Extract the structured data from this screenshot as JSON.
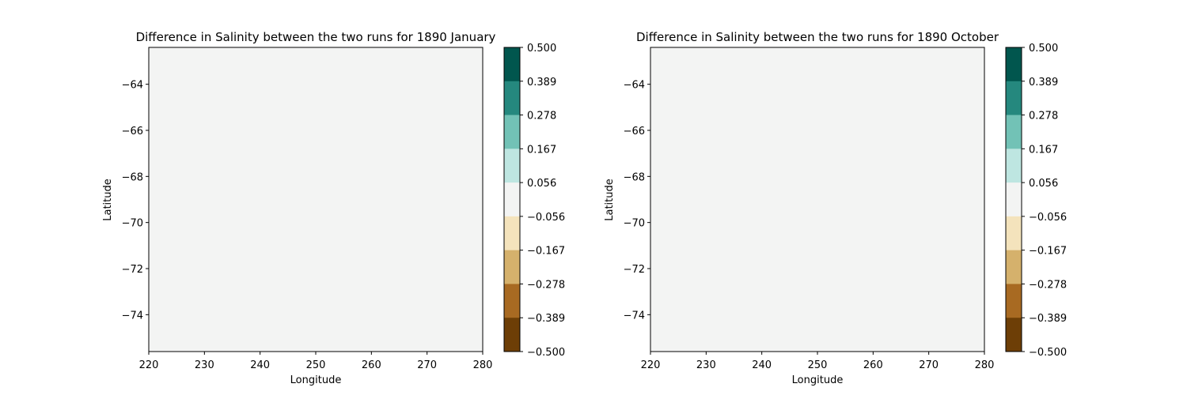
{
  "chart_data": [
    {
      "type": "heatmap",
      "title": "Difference in Salinity between the two runs for 1890 January",
      "xlabel": "Longitude",
      "ylabel": "Latitude",
      "xlim": [
        220,
        280
      ],
      "ylim": [
        -75.6,
        -62.4
      ],
      "xticks": [
        "220",
        "230",
        "240",
        "250",
        "260",
        "270",
        "280"
      ],
      "xtick_values": [
        220,
        230,
        240,
        250,
        260,
        270,
        280
      ],
      "yticks": [
        "−64",
        "−66",
        "−68",
        "−70",
        "−72",
        "−74"
      ],
      "ytick_values": [
        -64,
        -66,
        -68,
        -70,
        -72,
        -74
      ],
      "field_value": 0,
      "field_color": "#f3f4f3",
      "colorbar": {
        "ticks": [
          "0.500",
          "0.389",
          "0.278",
          "0.167",
          "0.056",
          "−0.056",
          "−0.167",
          "−0.278",
          "−0.389",
          "−0.500"
        ],
        "colors": [
          "#01564e",
          "#25887e",
          "#72c2b6",
          "#bee6e1",
          "#f3f4f3",
          "#f4e3bc",
          "#d5b16c",
          "#a86a22",
          "#6d3e06"
        ]
      }
    },
    {
      "type": "heatmap",
      "title": "Difference in Salinity between the two runs for 1890 October",
      "xlabel": "Longitude",
      "ylabel": "Latitude",
      "xlim": [
        220,
        280
      ],
      "ylim": [
        -75.6,
        -62.4
      ],
      "xticks": [
        "220",
        "230",
        "240",
        "250",
        "260",
        "270",
        "280"
      ],
      "xtick_values": [
        220,
        230,
        240,
        250,
        260,
        270,
        280
      ],
      "yticks": [
        "−64",
        "−66",
        "−68",
        "−70",
        "−72",
        "−74"
      ],
      "ytick_values": [
        -64,
        -66,
        -68,
        -70,
        -72,
        -74
      ],
      "field_value": 0,
      "field_color": "#f3f4f3",
      "colorbar": {
        "ticks": [
          "0.500",
          "0.389",
          "0.278",
          "0.167",
          "0.056",
          "−0.056",
          "−0.167",
          "−0.278",
          "−0.389",
          "−0.500"
        ],
        "colors": [
          "#01564e",
          "#25887e",
          "#72c2b6",
          "#bee6e1",
          "#f3f4f3",
          "#f4e3bc",
          "#d5b16c",
          "#a86a22",
          "#6d3e06"
        ]
      }
    }
  ]
}
